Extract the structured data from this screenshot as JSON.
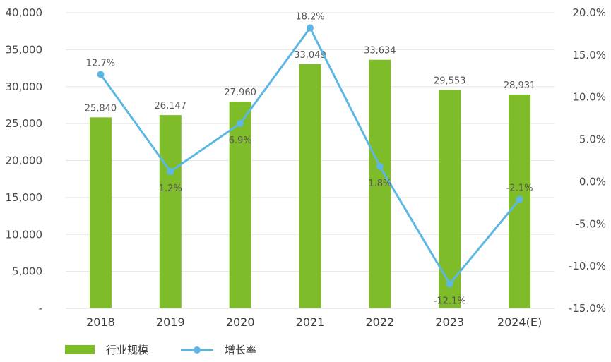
{
  "chart_data": {
    "type": "bar",
    "categories": [
      "2018",
      "2019",
      "2020",
      "2021",
      "2022",
      "2023",
      "2024(E)"
    ],
    "series": [
      {
        "name": "行业规模",
        "type": "bar",
        "axis": "left",
        "color": "#7fbc2a",
        "values": [
          25840,
          26147,
          27960,
          33049,
          33634,
          29553,
          28931
        ],
        "labels": [
          "25,840",
          "26,147",
          "27,960",
          "33,049",
          "33,634",
          "29,553",
          "28,931"
        ]
      },
      {
        "name": "增长率",
        "type": "line",
        "axis": "right",
        "color": "#5db7e4",
        "values": [
          12.7,
          1.2,
          6.9,
          18.2,
          1.8,
          -12.1,
          -2.1
        ],
        "labels": [
          "12.7%",
          "1.2%",
          "6.9%",
          "18.2%",
          "1.8%",
          "-12.1%",
          "-2.1%"
        ]
      }
    ],
    "y_left": {
      "range": [
        0,
        40000
      ],
      "ticks": [
        0,
        5000,
        10000,
        15000,
        20000,
        25000,
        30000,
        35000,
        40000
      ],
      "tick_labels": [
        "-",
        "5,000",
        "10,000",
        "15,000",
        "20,000",
        "25,000",
        "30,000",
        "35,000",
        "40,000"
      ]
    },
    "y_right": {
      "range": [
        -15,
        20
      ],
      "ticks": [
        -15,
        -10,
        -5,
        0,
        5,
        10,
        15,
        20
      ],
      "tick_labels": [
        "-15.0%",
        "-10.0%",
        "-5.0%",
        "0.0%",
        "5.0%",
        "10.0%",
        "15.0%",
        "20.0%"
      ]
    },
    "grid": true,
    "legend_position": "bottom-left",
    "legend": [
      {
        "label": "行业规模",
        "symbol": "bar"
      },
      {
        "label": "增长率",
        "symbol": "line-marker"
      }
    ]
  }
}
